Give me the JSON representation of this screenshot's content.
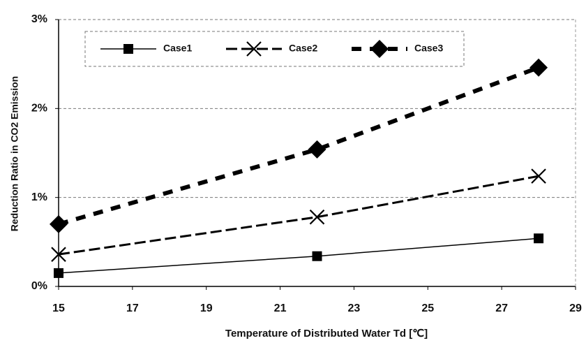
{
  "chart_data": {
    "type": "line",
    "x_label": "Temperature of Distributed Water   Td [℃]",
    "y_label": "Reduction Ratio in CO2 Emission",
    "x": [
      15,
      22,
      28
    ],
    "series": [
      {
        "name": "Case1",
        "color": "#000000",
        "marker": "square",
        "line": "solid",
        "values": [
          0.15,
          0.34,
          0.54
        ]
      },
      {
        "name": "Case2",
        "color": "#000000",
        "marker": "x",
        "line": "dashed",
        "values": [
          0.36,
          0.78,
          1.24
        ]
      },
      {
        "name": "Case3",
        "color": "#000000",
        "marker": "diamond",
        "line": "heavy-dashed",
        "values": [
          0.7,
          1.54,
          2.46
        ]
      }
    ],
    "xlim": [
      15,
      29
    ],
    "xticks": [
      15,
      17,
      19,
      21,
      23,
      25,
      27,
      29
    ],
    "ylim": [
      0,
      3
    ],
    "yticks": [
      {
        "value": 0,
        "label": "0%"
      },
      {
        "value": 1,
        "label": "1%"
      },
      {
        "value": 2,
        "label": "2%"
      },
      {
        "value": 3,
        "label": "3%"
      }
    ],
    "grid": true,
    "legend": "upper left"
  }
}
